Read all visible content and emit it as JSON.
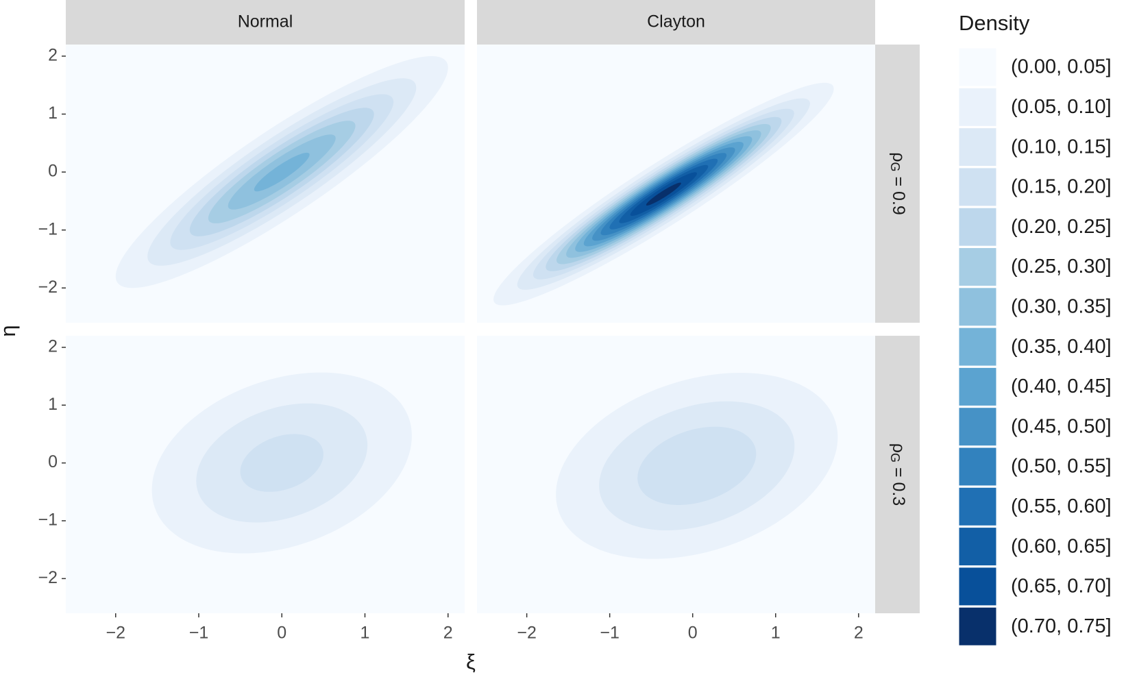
{
  "chart_data": {
    "type": "contour",
    "columns": [
      "Normal",
      "Clayton"
    ],
    "rows": [
      {
        "var": "ρ",
        "sub": "G",
        "eq": " = 0.9"
      },
      {
        "var": "ρ",
        "sub": "G",
        "eq": " = 0.3"
      }
    ],
    "x_label": "ξ",
    "y_label": "η",
    "xlim": [
      -2.6,
      2.2
    ],
    "ylim": [
      -2.6,
      2.2
    ],
    "xticks": [
      {
        "value": -2,
        "label": "−2"
      },
      {
        "value": -1,
        "label": "−1"
      },
      0,
      1,
      2
    ],
    "yticks": [
      {
        "value": -2,
        "label": "−2"
      },
      {
        "value": -1,
        "label": "−1"
      },
      0,
      1,
      2
    ],
    "panels": [
      {
        "column": "Normal",
        "row": 0,
        "peak": 0.37
      },
      {
        "column": "Clayton",
        "row": 0,
        "peak": 0.72
      },
      {
        "column": "Normal",
        "row": 1,
        "peak": 0.17
      },
      {
        "column": "Clayton",
        "row": 1,
        "peak": 0.19
      }
    ],
    "legend": {
      "title": "Density",
      "bins": [
        0,
        0.05,
        0.1,
        0.15,
        0.2,
        0.25,
        0.3,
        0.35,
        0.4,
        0.45,
        0.5,
        0.55,
        0.6,
        0.65,
        0.7,
        0.75
      ],
      "labels": [
        "(0.00, 0.05]",
        "(0.05, 0.10]",
        "(0.10, 0.15]",
        "(0.15, 0.20]",
        "(0.20, 0.25]",
        "(0.25, 0.30]",
        "(0.30, 0.35]",
        "(0.35, 0.40]",
        "(0.40, 0.45]",
        "(0.45, 0.50]",
        "(0.50, 0.55]",
        "(0.55, 0.60]",
        "(0.60, 0.65]",
        "(0.65, 0.70]",
        "(0.70, 0.75]"
      ],
      "colors": [
        "#f7fbff",
        "#eaf2fb",
        "#dce9f6",
        "#cfe1f2",
        "#bdd7ec",
        "#a6cde4",
        "#8fc1de",
        "#74b3d8",
        "#5ba3d0",
        "#4692c6",
        "#3282be",
        "#2070b4",
        "#125fa6",
        "#08509a",
        "#08306b"
      ]
    }
  }
}
